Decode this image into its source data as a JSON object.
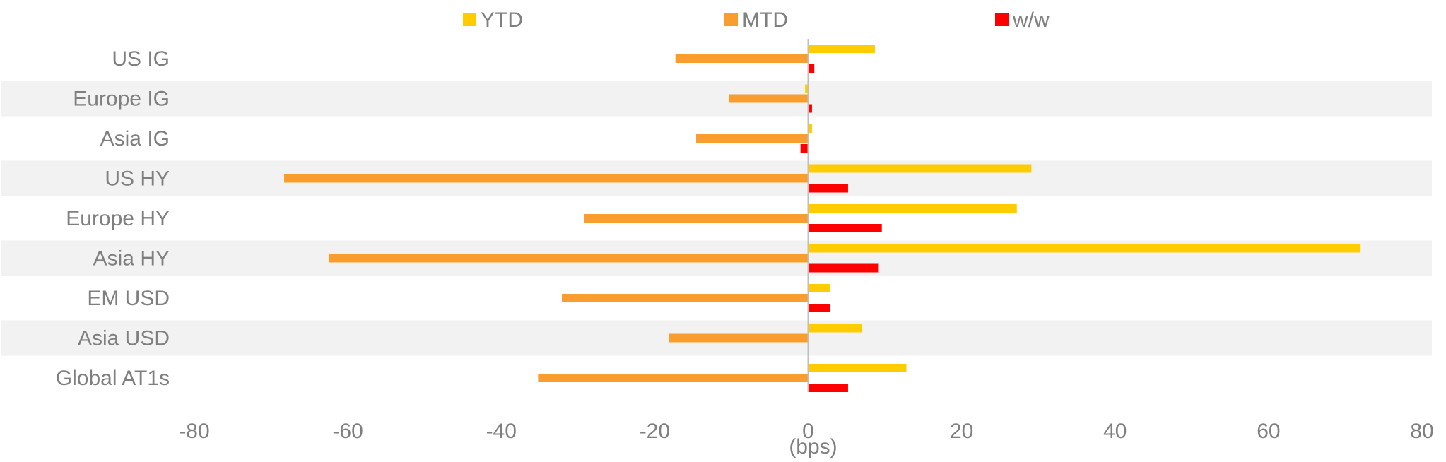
{
  "chart_data": {
    "type": "bar",
    "orientation": "horizontal",
    "categories": [
      "US IG",
      "Europe IG",
      "Asia IG",
      "US HY",
      "Europe HY",
      "Asia HY",
      "EM USD",
      "Asia USD",
      "Global AT1s"
    ],
    "series": [
      {
        "name": "YTD",
        "color": "#FFCC00",
        "values": [
          8.7,
          -0.4,
          0.5,
          29.1,
          27.2,
          72.0,
          2.9,
          7.0,
          12.8
        ]
      },
      {
        "name": "MTD",
        "color": "#F99D2E",
        "values": [
          -17.3,
          -10.3,
          -14.6,
          -68.3,
          -29.2,
          -62.5,
          -32.1,
          -18.1,
          -35.2
        ]
      },
      {
        "name": "w/w",
        "color": "#FF0000",
        "values": [
          0.8,
          0.5,
          -1.0,
          5.2,
          9.6,
          9.2,
          2.9,
          0,
          5.2
        ]
      }
    ],
    "xlim": [
      -80,
      80
    ],
    "x_ticks": [
      -80,
      -60,
      -40,
      -20,
      0,
      20,
      40,
      60,
      80
    ],
    "x_tick_labels": [
      "-80",
      "-60",
      "-40",
      "-20",
      "0",
      "20",
      "40",
      "60",
      "80"
    ],
    "xlabel": "(bps)",
    "title": "",
    "legend_position": "top",
    "alternating_row_shading": true,
    "row_shade_color": "#F2F2F2",
    "zero_line_color": "#BFBFBF",
    "text_color": "#7F7F7F"
  }
}
